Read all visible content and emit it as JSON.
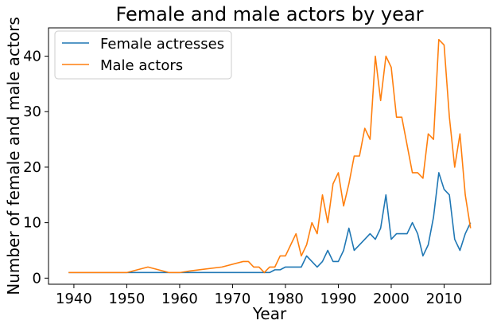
{
  "chart_data": {
    "type": "line",
    "title": "Female and male actors by year",
    "xlabel": "Year",
    "ylabel": "Number of female and male actors",
    "xlim": [
      1935.2,
      2018.8
    ],
    "ylim": [
      -1.1,
      45.1
    ],
    "xticks": [
      1940,
      1950,
      1960,
      1970,
      1980,
      1990,
      2000,
      2010
    ],
    "yticks": [
      0,
      10,
      20,
      30,
      40
    ],
    "grid": false,
    "legend": "top-left",
    "colors": {
      "female": "#1f77b4",
      "male": "#ff7f0e"
    },
    "series": [
      {
        "name": "Female actresses",
        "color": "#1f77b4",
        "x": [
          1939,
          1950,
          1960,
          1970,
          1975,
          1976,
          1977,
          1978,
          1979,
          1980,
          1981,
          1982,
          1983,
          1984,
          1985,
          1986,
          1987,
          1988,
          1989,
          1990,
          1991,
          1992,
          1993,
          1994,
          1995,
          1996,
          1997,
          1998,
          1999,
          2000,
          2001,
          2002,
          2003,
          2004,
          2005,
          2006,
          2007,
          2008,
          2009,
          2010,
          2011,
          2012,
          2013,
          2014,
          2015
        ],
        "y": [
          1,
          1,
          1,
          1,
          1,
          1,
          1,
          1.5,
          1.5,
          2,
          2,
          2,
          2,
          4,
          3,
          2,
          3,
          5,
          3,
          3,
          5,
          9,
          5,
          6,
          7,
          8,
          7,
          9,
          15,
          7,
          8,
          8,
          8,
          10,
          8,
          4,
          6,
          11,
          19,
          16,
          15,
          7,
          5,
          8,
          10
        ]
      },
      {
        "name": "Male actors",
        "color": "#ff7f0e",
        "x": [
          1939,
          1950,
          1954,
          1958,
          1960,
          1962,
          1968,
          1972,
          1973,
          1974,
          1975,
          1976,
          1977,
          1978,
          1979,
          1980,
          1981,
          1982,
          1983,
          1984,
          1985,
          1986,
          1987,
          1988,
          1989,
          1990,
          1991,
          1992,
          1993,
          1994,
          1995,
          1996,
          1997,
          1998,
          1999,
          2000,
          2001,
          2002,
          2003,
          2004,
          2005,
          2006,
          2007,
          2008,
          2009,
          2010,
          2011,
          2012,
          2013,
          2014,
          2015
        ],
        "y": [
          1,
          1,
          2,
          1,
          1,
          1.3,
          2,
          3,
          3,
          2,
          2,
          1,
          2,
          2,
          4,
          4,
          6,
          8,
          4,
          6,
          10,
          8,
          15,
          10,
          17,
          19,
          13,
          17,
          22,
          22,
          27,
          25,
          40,
          32,
          40,
          38,
          29,
          29,
          24,
          19,
          19,
          18,
          26,
          25,
          43,
          42,
          29,
          20,
          26,
          15,
          9
        ]
      }
    ]
  }
}
